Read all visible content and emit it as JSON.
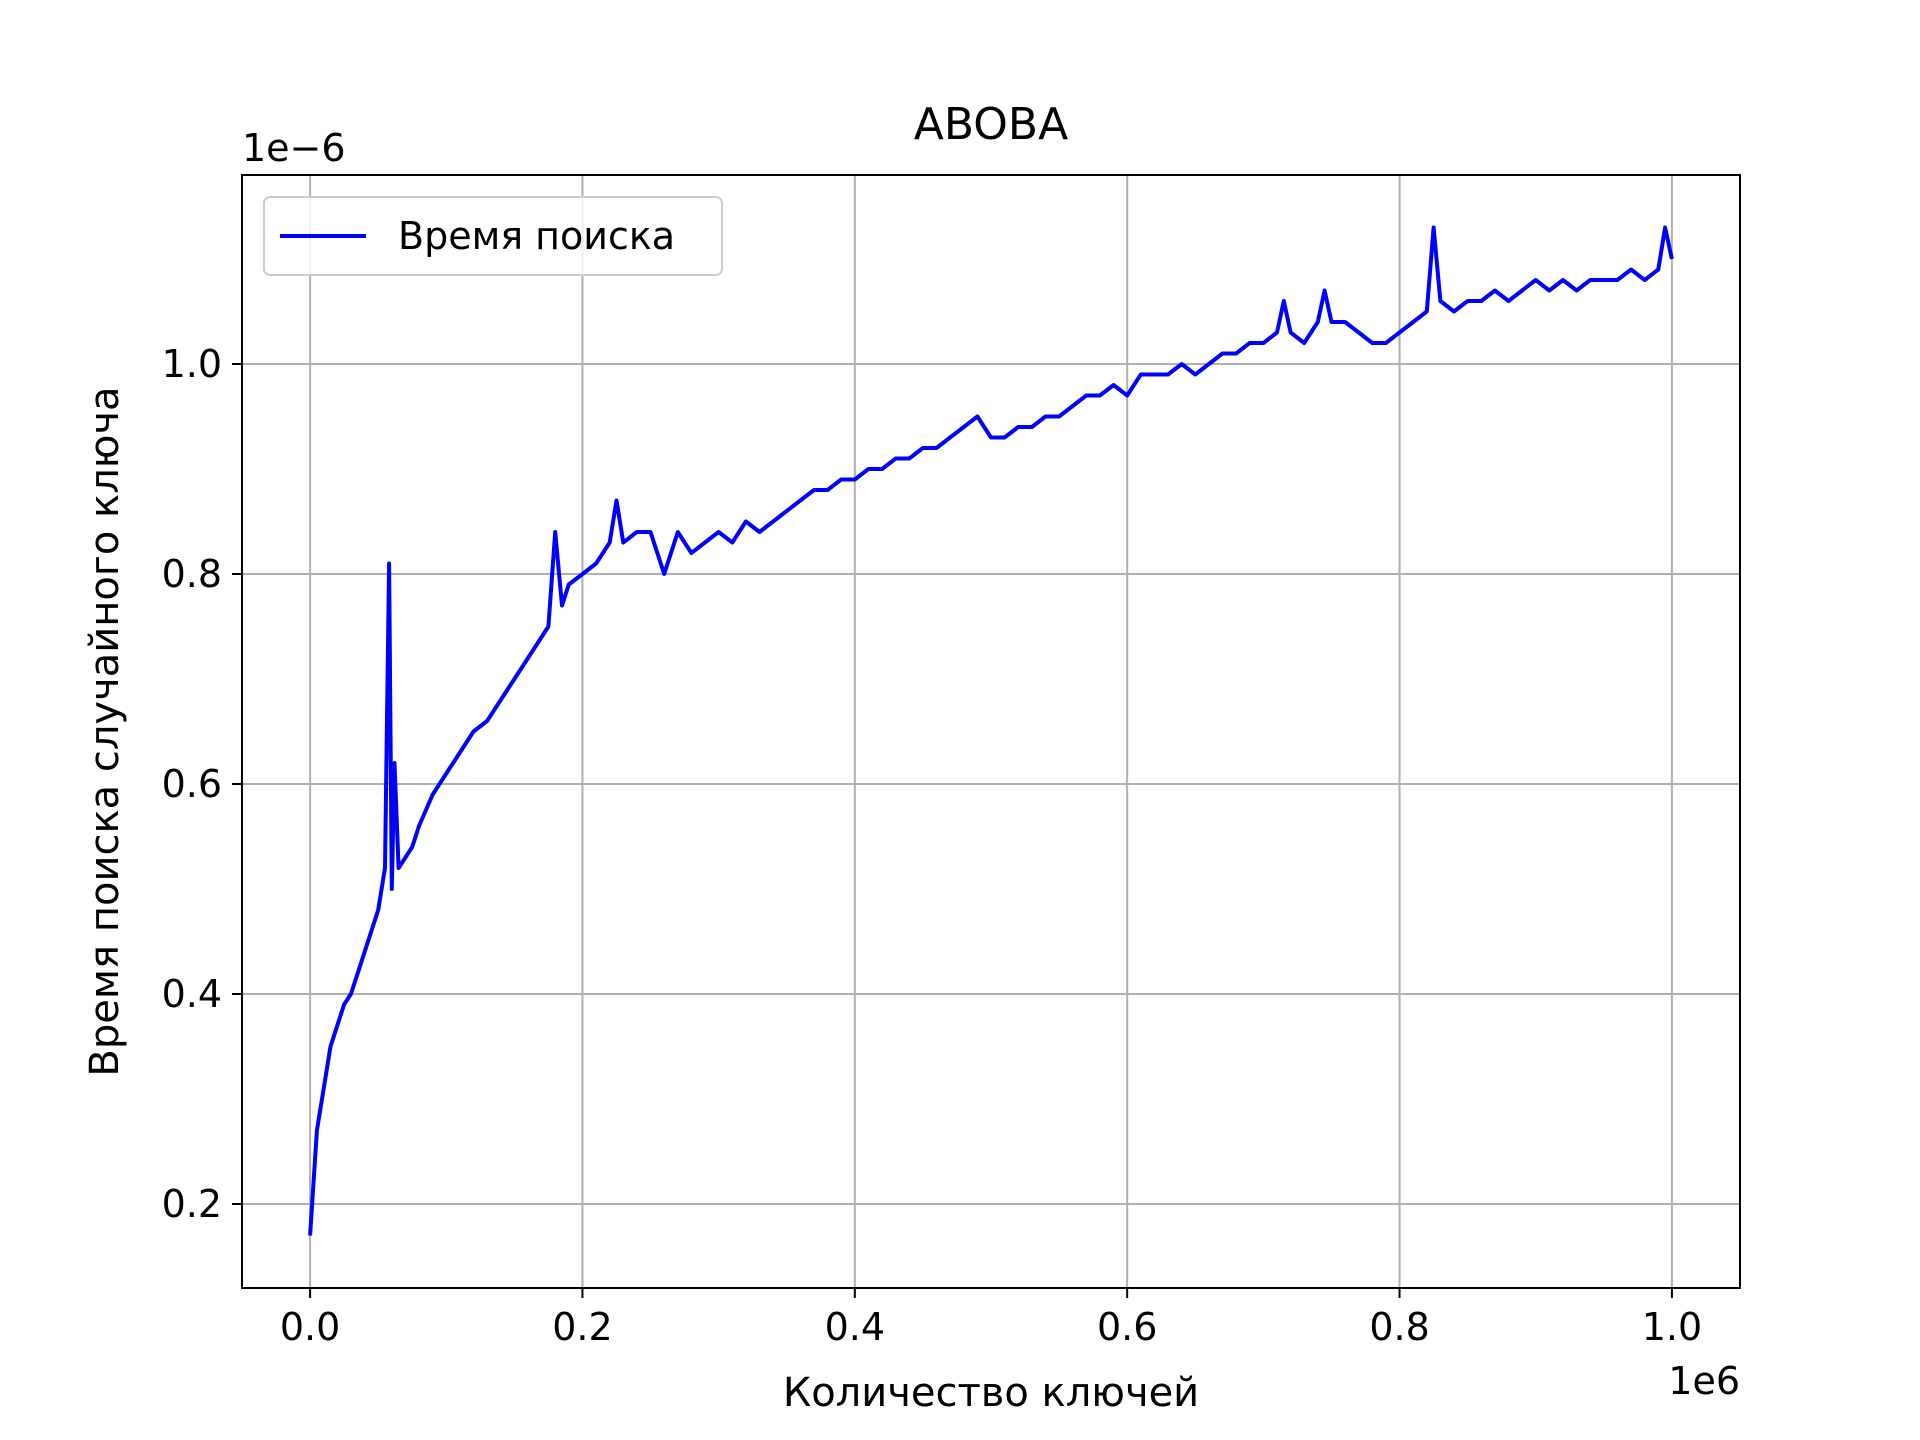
{
  "chart_data": {
    "type": "line",
    "title": "ABOBA",
    "xlabel": "Количество ключей",
    "ylabel": "Время поиска случайного ключа",
    "x_offset_label": "1e6",
    "y_offset_label": "1e−6",
    "xlim": [
      -50000,
      1050000
    ],
    "ylim": [
      1.2e-07,
      1.18e-06
    ],
    "x_ticks": [
      0,
      200000,
      400000,
      600000,
      800000,
      1000000
    ],
    "x_tick_labels": [
      "0.0",
      "0.2",
      "0.4",
      "0.6",
      "0.8",
      "1.0"
    ],
    "y_ticks": [
      2e-07,
      4e-07,
      6e-07,
      8e-07,
      1e-06
    ],
    "y_tick_labels": [
      "0.2",
      "0.4",
      "0.6",
      "0.8",
      "1.0"
    ],
    "grid": true,
    "legend_position": "upper-left",
    "series": [
      {
        "name": "Время поиска",
        "color": "#0000ff",
        "x": [
          0,
          5000,
          10000,
          15000,
          20000,
          25000,
          30000,
          35000,
          40000,
          45000,
          50000,
          55000,
          58000,
          60000,
          62000,
          65000,
          70000,
          75000,
          80000,
          90000,
          100000,
          110000,
          120000,
          130000,
          140000,
          150000,
          160000,
          170000,
          175000,
          180000,
          185000,
          190000,
          200000,
          210000,
          220000,
          225000,
          230000,
          240000,
          250000,
          260000,
          270000,
          280000,
          290000,
          300000,
          310000,
          320000,
          330000,
          340000,
          350000,
          360000,
          370000,
          380000,
          390000,
          400000,
          410000,
          420000,
          430000,
          440000,
          450000,
          460000,
          470000,
          480000,
          490000,
          500000,
          510000,
          520000,
          530000,
          540000,
          550000,
          560000,
          570000,
          580000,
          590000,
          600000,
          610000,
          620000,
          630000,
          640000,
          650000,
          660000,
          670000,
          680000,
          690000,
          700000,
          710000,
          715000,
          720000,
          730000,
          740000,
          745000,
          750000,
          760000,
          770000,
          780000,
          790000,
          800000,
          810000,
          820000,
          825000,
          830000,
          840000,
          850000,
          860000,
          870000,
          880000,
          890000,
          900000,
          910000,
          920000,
          930000,
          940000,
          950000,
          960000,
          970000,
          980000,
          990000,
          995000,
          1000000
        ],
        "y": [
          1.7e-07,
          2.7e-07,
          3.1e-07,
          3.5e-07,
          3.7e-07,
          3.9e-07,
          4e-07,
          4.2e-07,
          4.4e-07,
          4.6e-07,
          4.8e-07,
          5.2e-07,
          8.1e-07,
          5e-07,
          6.2e-07,
          5.2e-07,
          5.3e-07,
          5.4e-07,
          5.6e-07,
          5.9e-07,
          6.1e-07,
          6.3e-07,
          6.5e-07,
          6.6e-07,
          6.8e-07,
          7e-07,
          7.2e-07,
          7.4e-07,
          7.5e-07,
          8.4e-07,
          7.7e-07,
          7.9e-07,
          8e-07,
          8.1e-07,
          8.3e-07,
          8.7e-07,
          8.3e-07,
          8.4e-07,
          8.4e-07,
          8e-07,
          8.4e-07,
          8.2e-07,
          8.3e-07,
          8.4e-07,
          8.3e-07,
          8.5e-07,
          8.4e-07,
          8.5e-07,
          8.6e-07,
          8.7e-07,
          8.8e-07,
          8.8e-07,
          8.9e-07,
          8.9e-07,
          9e-07,
          9e-07,
          9.1e-07,
          9.1e-07,
          9.2e-07,
          9.2e-07,
          9.3e-07,
          9.4e-07,
          9.5e-07,
          9.3e-07,
          9.3e-07,
          9.4e-07,
          9.4e-07,
          9.5e-07,
          9.5e-07,
          9.6e-07,
          9.7e-07,
          9.7e-07,
          9.8e-07,
          9.7e-07,
          9.9e-07,
          9.9e-07,
          9.9e-07,
          1e-06,
          9.9e-07,
          1e-06,
          1.01e-06,
          1.01e-06,
          1.02e-06,
          1.02e-06,
          1.03e-06,
          1.06e-06,
          1.03e-06,
          1.02e-06,
          1.04e-06,
          1.07e-06,
          1.04e-06,
          1.04e-06,
          1.03e-06,
          1.02e-06,
          1.02e-06,
          1.03e-06,
          1.04e-06,
          1.05e-06,
          1.13e-06,
          1.06e-06,
          1.05e-06,
          1.06e-06,
          1.06e-06,
          1.07e-06,
          1.06e-06,
          1.07e-06,
          1.08e-06,
          1.07e-06,
          1.08e-06,
          1.07e-06,
          1.08e-06,
          1.08e-06,
          1.08e-06,
          1.09e-06,
          1.08e-06,
          1.09e-06,
          1.13e-06,
          1.1e-06
        ]
      }
    ]
  }
}
